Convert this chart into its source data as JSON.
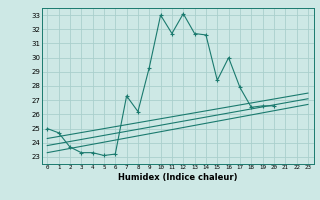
{
  "xlabel": "Humidex (Indice chaleur)",
  "background_color": "#cde8e5",
  "line_color": "#1a7a6e",
  "grid_color": "#aacfcc",
  "xlim": [
    -0.5,
    23.5
  ],
  "ylim": [
    22.5,
    33.5
  ],
  "yticks": [
    23,
    24,
    25,
    26,
    27,
    28,
    29,
    30,
    31,
    32,
    33
  ],
  "xticks": [
    0,
    1,
    2,
    3,
    4,
    5,
    6,
    7,
    8,
    9,
    10,
    11,
    12,
    13,
    14,
    15,
    16,
    17,
    18,
    19,
    20,
    21,
    22,
    23
  ],
  "series1": [
    25.0,
    24.7,
    23.7,
    23.3,
    23.3,
    23.1,
    23.2,
    27.3,
    26.2,
    29.3,
    33.0,
    31.7,
    33.1,
    31.7,
    31.6,
    28.4,
    30.0,
    27.9,
    26.5,
    26.6,
    26.6,
    null,
    null,
    null
  ],
  "series2_x": [
    0,
    23
  ],
  "series2_y": [
    23.3,
    26.7
  ],
  "series3_x": [
    0,
    23
  ],
  "series3_y": [
    23.8,
    27.1
  ],
  "series4_x": [
    0,
    23
  ],
  "series4_y": [
    24.3,
    27.5
  ]
}
